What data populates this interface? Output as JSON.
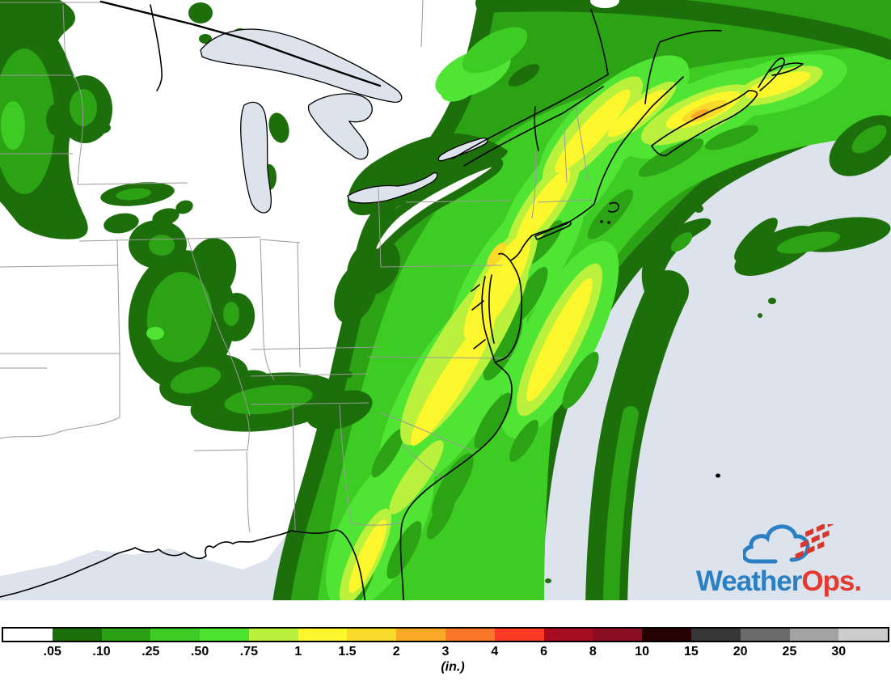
{
  "page": {
    "type": "precipitation-accumulation-weather-map",
    "region": "Eastern United States and Canadian Maritimes"
  },
  "map": {
    "land_color": "#ffffff",
    "water_color": "#dce3ec",
    "state_border_color": "#9a9a9a",
    "coastline_color": "#000000",
    "water_bodies": [
      "Lake Superior",
      "Lake Michigan",
      "Lake Huron",
      "Lake Erie",
      "Lake Ontario",
      "Atlantic Ocean",
      "Gulf of Mexico"
    ],
    "precip_colors": {
      "0.05-0.10": "#1d6f0b",
      "0.10-0.25": "#2ba314",
      "0.25-0.50": "#3ecb24",
      "0.50-0.75": "#50e534",
      "0.75-1": "#b9f13d",
      "1-1.5": "#fcf72d",
      "1.5-2": "#f8da2a",
      "2-3": "#f9a827"
    }
  },
  "legend": {
    "unit_label": "(in.)",
    "tick_labels": [
      ".05",
      ".10",
      ".25",
      ".50",
      ".75",
      "1",
      "1.5",
      "2",
      "3",
      "4",
      "6",
      "8",
      "10",
      "15",
      "20",
      "25",
      "30"
    ],
    "segment_colors": [
      "#ffffff",
      "#1b6e0a",
      "#2aa114",
      "#3ecb24",
      "#4de431",
      "#b9f13d",
      "#fcf72d",
      "#f8da2a",
      "#f9a827",
      "#f87728",
      "#fa3a24",
      "#a80c20",
      "#8c0e24",
      "#250103",
      "#373737",
      "#6b6b6b",
      "#a3a3a3",
      "#cdcdcd"
    ]
  },
  "branding": {
    "name": "WeatherOps",
    "logo_primary": "Weather",
    "logo_secondary": "Ops.",
    "primary_color": "#2b7fc3",
    "secondary_color": "#e23a30"
  }
}
